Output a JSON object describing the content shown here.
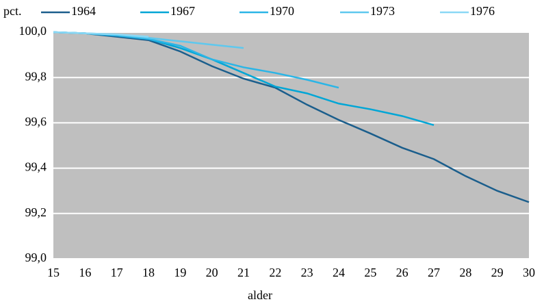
{
  "chart_data": {
    "type": "line",
    "y_label": "pct.",
    "x_label": "alder",
    "x": [
      15,
      16,
      17,
      18,
      19,
      20,
      21,
      22,
      23,
      24,
      25,
      26,
      27,
      28,
      29,
      30
    ],
    "series": [
      {
        "name": "1964",
        "color": "#1b5e8c",
        "values": [
          100.0,
          99.995,
          99.98,
          99.965,
          99.915,
          99.85,
          99.795,
          99.755,
          99.68,
          99.613,
          99.553,
          99.49,
          99.44,
          99.365,
          99.3,
          99.25
        ]
      },
      {
        "name": "1967",
        "color": "#00a6d6",
        "values": [
          100.0,
          99.995,
          99.985,
          99.97,
          99.93,
          99.88,
          99.82,
          99.76,
          99.73,
          99.685,
          99.66,
          99.63,
          99.59,
          null,
          null,
          null
        ]
      },
      {
        "name": "1970",
        "color": "#2bb5e6",
        "values": [
          100.0,
          99.995,
          99.985,
          99.97,
          99.94,
          99.88,
          99.845,
          99.82,
          99.79,
          99.755,
          null,
          null,
          null,
          null,
          null,
          null
        ]
      },
      {
        "name": "1973",
        "color": "#5ec8ee",
        "values": [
          100.0,
          99.995,
          99.99,
          99.975,
          99.96,
          99.945,
          99.93,
          null,
          null,
          null,
          null,
          null,
          null,
          null,
          null,
          null
        ]
      },
      {
        "name": "1976",
        "color": "#8ad8f5",
        "values": [
          100.0,
          99.995,
          99.99,
          99.98,
          null,
          null,
          null,
          null,
          null,
          null,
          null,
          null,
          null,
          null,
          null,
          null
        ]
      }
    ],
    "xlim": [
      15,
      30
    ],
    "xticks": [
      15,
      16,
      17,
      18,
      19,
      20,
      21,
      22,
      23,
      24,
      25,
      26,
      27,
      28,
      29,
      30
    ],
    "ylim": [
      99.0,
      100.0
    ],
    "yticks": [
      {
        "value": 99.0,
        "label": "99,0"
      },
      {
        "value": 99.2,
        "label": "99,2"
      },
      {
        "value": 99.4,
        "label": "99,4"
      },
      {
        "value": 99.6,
        "label": "99,6"
      },
      {
        "value": 99.8,
        "label": "99,8"
      },
      {
        "value": 100.0,
        "label": "100,0"
      }
    ],
    "grid": true,
    "plot_background": "#bfbfbf"
  }
}
